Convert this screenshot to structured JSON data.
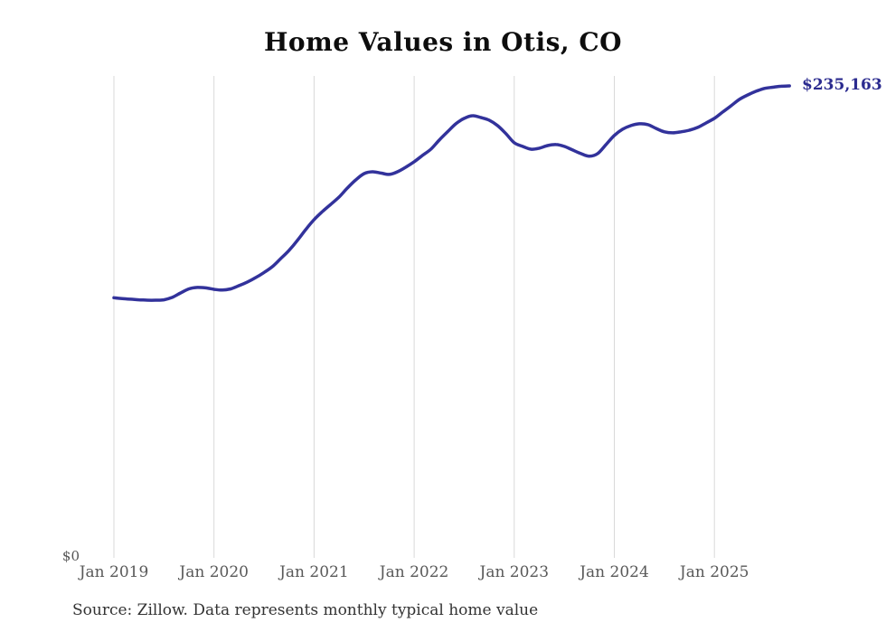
{
  "header": {
    "title": "Home Values in Otis, CO"
  },
  "annotations": {
    "y_zero_label": "$0",
    "latest_value_label": "$235,163"
  },
  "footer": {
    "source_note": "Source: Zillow. Data represents monthly typical home value"
  },
  "colors": {
    "line": "#32329B",
    "latest_value_label": "#2B2B8F",
    "gridline": "#D9D9D9",
    "tick_label": "#595959",
    "title_text": "#0D0D0D",
    "source_text": "#333333",
    "background": "#FFFFFF"
  },
  "chart_data": {
    "type": "line",
    "title": "Home Values in Otis, CO",
    "series_name": "Monthly typical home value",
    "xlabel": "",
    "ylabel": "",
    "ylim": [
      0,
      240000
    ],
    "grid": "vertical-only",
    "legend": "none",
    "final_value": 235163,
    "final_value_label": "$235,163",
    "x_tick_labels": [
      "Jan 2019",
      "Jan 2020",
      "Jan 2021",
      "Jan 2022",
      "Jan 2023",
      "Jan 2024",
      "Jan 2025"
    ],
    "x_tick_indices": [
      0,
      12,
      24,
      36,
      48,
      60,
      72
    ],
    "x": [
      "2019-01",
      "2019-02",
      "2019-03",
      "2019-04",
      "2019-05",
      "2019-06",
      "2019-07",
      "2019-08",
      "2019-09",
      "2019-10",
      "2019-11",
      "2019-12",
      "2020-01",
      "2020-02",
      "2020-03",
      "2020-04",
      "2020-05",
      "2020-06",
      "2020-07",
      "2020-08",
      "2020-09",
      "2020-10",
      "2020-11",
      "2020-12",
      "2021-01",
      "2021-02",
      "2021-03",
      "2021-04",
      "2021-05",
      "2021-06",
      "2021-07",
      "2021-08",
      "2021-09",
      "2021-10",
      "2021-11",
      "2021-12",
      "2022-01",
      "2022-02",
      "2022-03",
      "2022-04",
      "2022-05",
      "2022-06",
      "2022-07",
      "2022-08",
      "2022-09",
      "2022-10",
      "2022-11",
      "2022-12",
      "2023-01",
      "2023-02",
      "2023-03",
      "2023-04",
      "2023-05",
      "2023-06",
      "2023-07",
      "2023-08",
      "2023-09",
      "2023-10",
      "2023-11",
      "2023-12",
      "2024-01",
      "2024-02",
      "2024-03",
      "2024-04",
      "2024-05",
      "2024-06",
      "2024-07",
      "2024-08",
      "2024-09",
      "2024-10",
      "2024-11",
      "2024-12",
      "2025-01",
      "2025-02",
      "2025-03",
      "2025-04",
      "2025-05",
      "2025-06",
      "2025-07",
      "2025-08",
      "2025-09",
      "2025-10"
    ],
    "values": [
      130200,
      129800,
      129500,
      129200,
      129000,
      129000,
      129200,
      130400,
      132600,
      134600,
      135300,
      135100,
      134400,
      134000,
      134600,
      136200,
      138000,
      140200,
      142700,
      145600,
      149600,
      153700,
      158600,
      164000,
      168900,
      172900,
      176500,
      180100,
      184600,
      188600,
      191700,
      192600,
      192000,
      191300,
      192600,
      194900,
      197600,
      200700,
      203800,
      208300,
      212400,
      216400,
      219100,
      220400,
      219500,
      218200,
      215500,
      211500,
      207000,
      205200,
      203800,
      204300,
      205600,
      206100,
      205200,
      203400,
      201600,
      200300,
      201600,
      206100,
      210600,
      213700,
      215500,
      216400,
      216000,
      214100,
      212400,
      211900,
      212400,
      213200,
      214600,
      216800,
      219100,
      222200,
      225300,
      228500,
      230700,
      232500,
      233900,
      234500,
      235000,
      235163
    ]
  }
}
